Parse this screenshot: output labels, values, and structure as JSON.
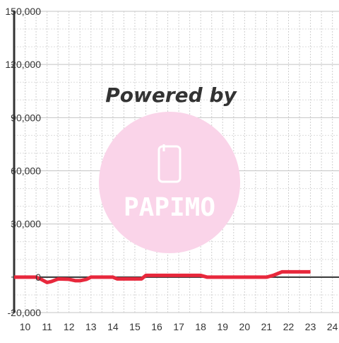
{
  "chart_data": {
    "type": "line",
    "x_tick_labels": [
      "10",
      "11",
      "12",
      "13",
      "14",
      "15",
      "16",
      "17",
      "18",
      "19",
      "20",
      "21",
      "22",
      "23",
      "24"
    ],
    "y_tick_labels": [
      "150,000",
      "120,000",
      "90,000",
      "60,000",
      "30,000",
      "0",
      "-20,000"
    ],
    "y_ticks": [
      150000,
      120000,
      90000,
      60000,
      30000,
      0,
      -20000
    ],
    "xlim": [
      9.5,
      24.3
    ],
    "ylim": [
      -20000,
      150000
    ],
    "grid": true,
    "colors": {
      "line": "#e8283c",
      "axis": "#333333",
      "grid": "#bbbbbb",
      "watermark": "#fad4e9"
    },
    "series": [
      {
        "x": [
          9.5,
          10,
          10.5,
          10.7,
          11,
          11.2,
          11.5,
          12,
          12.3,
          12.5,
          12.8,
          13,
          13.5,
          14,
          14.2,
          14.5,
          15,
          15.3,
          15.5,
          16,
          16.5,
          17,
          17.5,
          18,
          18.3,
          18.5,
          19,
          20,
          21,
          21.3,
          21.7,
          22,
          22.5,
          23
        ],
        "y": [
          0,
          0,
          0,
          -1000,
          -3000,
          -2500,
          -1000,
          -1200,
          -2000,
          -2000,
          -1200,
          0,
          0,
          0,
          -1000,
          -1000,
          -1000,
          -1000,
          1000,
          1000,
          1000,
          1000,
          1000,
          1000,
          0,
          0,
          0,
          0,
          0,
          1000,
          3000,
          3000,
          3000,
          3000
        ]
      }
    ]
  },
  "watermark": {
    "text": "Powered by",
    "logo_text": "PAPIMO"
  }
}
